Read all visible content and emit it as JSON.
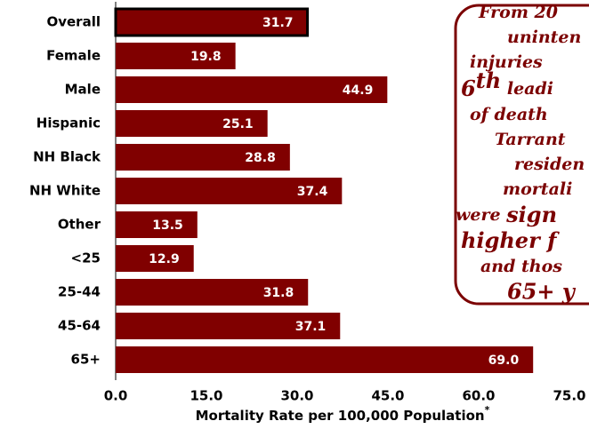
{
  "chart_data": {
    "type": "bar",
    "orientation": "horizontal",
    "categories": [
      "Overall",
      "Female",
      "Male",
      "Hispanic",
      "NH Black",
      "NH White",
      "Other",
      "<25",
      "25-44",
      "45-64",
      "65+"
    ],
    "values": [
      31.7,
      19.8,
      44.9,
      25.1,
      28.8,
      37.4,
      13.5,
      12.9,
      31.8,
      37.1,
      69.0
    ],
    "value_labels": [
      "31.7",
      "19.8",
      "44.9",
      "25.1",
      "28.8",
      "37.4",
      "13.5",
      "12.9",
      "31.8",
      "37.1",
      "69.0"
    ],
    "color": "#800000",
    "highlight": "Overall",
    "xlim": [
      0,
      75
    ],
    "xticks": [
      {
        "value": 0,
        "label": "0.0"
      },
      {
        "value": 15,
        "label": "15.0"
      },
      {
        "value": 30,
        "label": "30.0"
      },
      {
        "value": 45,
        "label": "45.0"
      },
      {
        "value": 60,
        "label": "60.0"
      },
      {
        "value": 75,
        "label": "75.0"
      }
    ],
    "x_label": "Mortality Rate per 100,000 Population",
    "x_label_note": "*",
    "annotation": [
      "From 20",
      "uninten",
      "injuries",
      [
        "6",
        "th",
        " leadi"
      ],
      "of death",
      "Tarrant",
      "residen",
      "mortali",
      [
        "were ",
        "sign"
      ],
      [
        "higher",
        " f"
      ],
      "and thos",
      "65+ y"
    ]
  }
}
